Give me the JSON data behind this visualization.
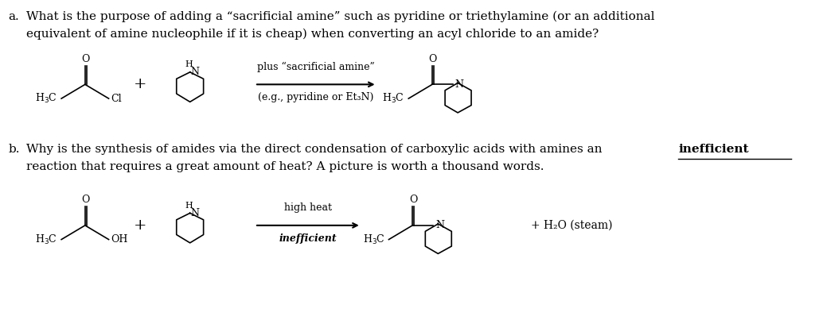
{
  "bg_color": "#ffffff",
  "fig_width": 10.44,
  "fig_height": 4.03,
  "dpi": 100,
  "part_a_label": "a.",
  "part_a_text_line1": "What is the purpose of adding a “sacrificial amine” such as pyridine or triethylamine (or an additional",
  "part_a_text_line2": "equivalent of amine nucleophile if it is cheap) when converting an acyl chloride to an amide?",
  "part_b_label": "b.",
  "part_b_text_line1": "Why is the synthesis of amides via the direct condensation of carboxylic acids with amines an",
  "part_b_text_bold": "inefficient",
  "part_b_text_line2": "reaction that requires a great amount of heat? A picture is worth a thousand words.",
  "rxn_a_arrow_label_top": "plus “sacrificial amine”",
  "rxn_a_arrow_label_bot": "(e.g., pyridine or Et₃N)",
  "rxn_b_arrow_label_top": "high heat",
  "rxn_b_arrow_label_bot": "inefficient",
  "rxn_b_product2": "+ H₂O (steam)",
  "font_size_text": 11,
  "font_size_label": 11,
  "font_size_chem": 9,
  "text_color": "#000000"
}
